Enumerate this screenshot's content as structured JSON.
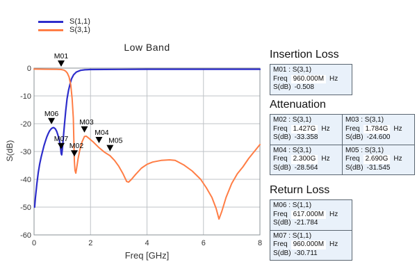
{
  "legend": {
    "items": [
      {
        "label": "S(1,1)",
        "color": "#2d2dcb"
      },
      {
        "label": "S(3,1)",
        "color": "#ff7d45"
      }
    ]
  },
  "chart_data": {
    "type": "line",
    "title": "Low Band",
    "xlabel": "Freq [GHz]",
    "ylabel": "S(dB)",
    "xlim": [
      0,
      8
    ],
    "ylim": [
      -60,
      0
    ],
    "xticks": [
      0,
      2,
      4,
      6,
      8
    ],
    "yticks": [
      0,
      -10,
      -20,
      -30,
      -40,
      -50,
      -60
    ],
    "grid": true,
    "legend_position": "top-left",
    "colors": {
      "grid": "#bfc3c7",
      "frame": "#8a9096",
      "tick_text": "#333333",
      "marker": "#000000"
    },
    "series": [
      {
        "name": "S(1,1)",
        "color": "#2d2dcb",
        "width": 2.2,
        "points": [
          [
            0.02,
            -50
          ],
          [
            0.05,
            -46.5
          ],
          [
            0.1,
            -41.5
          ],
          [
            0.15,
            -37.5
          ],
          [
            0.2,
            -34.5
          ],
          [
            0.25,
            -32
          ],
          [
            0.3,
            -30
          ],
          [
            0.35,
            -28
          ],
          [
            0.4,
            -26.3
          ],
          [
            0.45,
            -24.8
          ],
          [
            0.5,
            -23.6
          ],
          [
            0.55,
            -22.6
          ],
          [
            0.6,
            -21.9
          ],
          [
            0.65,
            -21.5
          ],
          [
            0.7,
            -21.4
          ],
          [
            0.75,
            -21.8
          ],
          [
            0.8,
            -22.7
          ],
          [
            0.85,
            -24.2
          ],
          [
            0.9,
            -26.2
          ],
          [
            0.93,
            -27.8
          ],
          [
            0.96,
            -30.7
          ],
          [
            0.98,
            -31.2
          ],
          [
            1.0,
            -29.5
          ],
          [
            1.03,
            -26
          ],
          [
            1.07,
            -21
          ],
          [
            1.12,
            -15.5
          ],
          [
            1.17,
            -11
          ],
          [
            1.22,
            -8
          ],
          [
            1.28,
            -5.5
          ],
          [
            1.33,
            -3.8
          ],
          [
            1.4,
            -2.4
          ],
          [
            1.5,
            -1.4
          ],
          [
            1.65,
            -0.8
          ],
          [
            1.8,
            -0.6
          ],
          [
            2.0,
            -0.5
          ],
          [
            3,
            -0.45
          ],
          [
            4,
            -0.4
          ],
          [
            5,
            -0.4
          ],
          [
            6,
            -0.4
          ],
          [
            7,
            -0.4
          ],
          [
            8,
            -0.4
          ]
        ]
      },
      {
        "name": "S(3,1)",
        "color": "#ff7d45",
        "width": 2.0,
        "points": [
          [
            0,
            -0.35
          ],
          [
            0.4,
            -0.4
          ],
          [
            0.8,
            -0.45
          ],
          [
            0.96,
            -0.51
          ],
          [
            1.05,
            -0.7
          ],
          [
            1.12,
            -1.1
          ],
          [
            1.18,
            -1.8
          ],
          [
            1.24,
            -3.2
          ],
          [
            1.3,
            -6
          ],
          [
            1.35,
            -11
          ],
          [
            1.39,
            -18
          ],
          [
            1.427,
            -33.4
          ],
          [
            1.45,
            -36.8
          ],
          [
            1.48,
            -37.8
          ],
          [
            1.51,
            -36
          ],
          [
            1.56,
            -32.5
          ],
          [
            1.62,
            -29.5
          ],
          [
            1.7,
            -26.5
          ],
          [
            1.784,
            -24.6
          ],
          [
            1.85,
            -24.5
          ],
          [
            1.95,
            -25.3
          ],
          [
            2.1,
            -26.6
          ],
          [
            2.3,
            -28.6
          ],
          [
            2.5,
            -30.3
          ],
          [
            2.69,
            -31.5
          ],
          [
            2.85,
            -33.2
          ],
          [
            3.0,
            -35.3
          ],
          [
            3.15,
            -38
          ],
          [
            3.28,
            -40.8
          ],
          [
            3.35,
            -41
          ],
          [
            3.45,
            -40
          ],
          [
            3.6,
            -38.2
          ],
          [
            3.8,
            -36
          ],
          [
            4.0,
            -34.6
          ],
          [
            4.2,
            -33.8
          ],
          [
            4.5,
            -33.2
          ],
          [
            4.8,
            -33
          ],
          [
            5.0,
            -33.2
          ],
          [
            5.3,
            -34.8
          ],
          [
            5.6,
            -37
          ],
          [
            5.9,
            -40
          ],
          [
            6.1,
            -43
          ],
          [
            6.3,
            -46.5
          ],
          [
            6.45,
            -50.5
          ],
          [
            6.55,
            -54.3
          ],
          [
            6.65,
            -51.5
          ],
          [
            6.8,
            -46.5
          ],
          [
            7.0,
            -41.5
          ],
          [
            7.2,
            -38
          ],
          [
            7.4,
            -35.5
          ],
          [
            7.6,
            -32.5
          ],
          [
            7.8,
            -30
          ],
          [
            8.0,
            -27.5
          ]
        ]
      }
    ],
    "markers": [
      {
        "id": "M01",
        "series": "S(3,1)",
        "freq_ghz": 0.96,
        "s_db": -0.508,
        "tip_db": 0.5,
        "label_dx": 0
      },
      {
        "id": "M02",
        "series": "S(3,1)",
        "freq_ghz": 1.427,
        "s_db": -33.358,
        "tip_db": -31.8,
        "label_dx": 3
      },
      {
        "id": "M03",
        "series": "S(3,1)",
        "freq_ghz": 1.784,
        "s_db": -24.6,
        "tip_db": -23.2,
        "label_dx": 3
      },
      {
        "id": "M04",
        "series": "S(3,1)",
        "freq_ghz": 2.3,
        "s_db": -28.564,
        "tip_db": -27.0,
        "label_dx": 4
      },
      {
        "id": "M05",
        "series": "S(3,1)",
        "freq_ghz": 2.69,
        "s_db": -31.545,
        "tip_db": -29.9,
        "label_dx": 8
      },
      {
        "id": "M06",
        "series": "S(1,1)",
        "freq_ghz": 0.617,
        "s_db": -21.784,
        "tip_db": -20.2,
        "label_dx": 0
      },
      {
        "id": "M07",
        "series": "S(1,1)",
        "freq_ghz": 0.96,
        "s_db": -30.711,
        "tip_db": -29.2,
        "label_dx": 0
      }
    ]
  },
  "marker_sections": [
    {
      "heading": "Insertion Loss",
      "markers": [
        {
          "name_line": "M01 : S(3,1)",
          "freq_label": "Freq",
          "freq_value": "960.000M",
          "freq_unit": "Hz",
          "sdb_label": "S(dB)",
          "sdb_value": "-0.508"
        }
      ]
    },
    {
      "heading": "Attenuation",
      "markers": [
        {
          "name_line": "M02 : S(3,1)",
          "freq_label": "Freq",
          "freq_value": "1.427G",
          "freq_unit": "Hz",
          "sdb_label": "S(dB)",
          "sdb_value": "-33.358"
        },
        {
          "name_line": "M03 : S(3,1)",
          "freq_label": "Freq",
          "freq_value": "1.784G",
          "freq_unit": "Hz",
          "sdb_label": "S(dB)",
          "sdb_value": "-24.600"
        },
        {
          "name_line": "M04 : S(3,1)",
          "freq_label": "Freq",
          "freq_value": "2.300G",
          "freq_unit": "Hz",
          "sdb_label": "S(dB)",
          "sdb_value": "-28.564"
        },
        {
          "name_line": "M05 : S(3,1)",
          "freq_label": "Freq",
          "freq_value": "2.690G",
          "freq_unit": "Hz",
          "sdb_label": "S(dB)",
          "sdb_value": "-31.545"
        }
      ]
    },
    {
      "heading": "Return Loss",
      "markers": [
        {
          "name_line": "M06 : S(1,1)",
          "freq_label": "Freq",
          "freq_value": "617.000M",
          "freq_unit": "Hz",
          "sdb_label": "S(dB)",
          "sdb_value": "-21.784"
        },
        {
          "name_line": "M07 : S(1,1)",
          "freq_label": "Freq",
          "freq_value": "960.000M",
          "freq_unit": "Hz",
          "sdb_label": "S(dB)",
          "sdb_value": "-30.711"
        }
      ]
    }
  ]
}
